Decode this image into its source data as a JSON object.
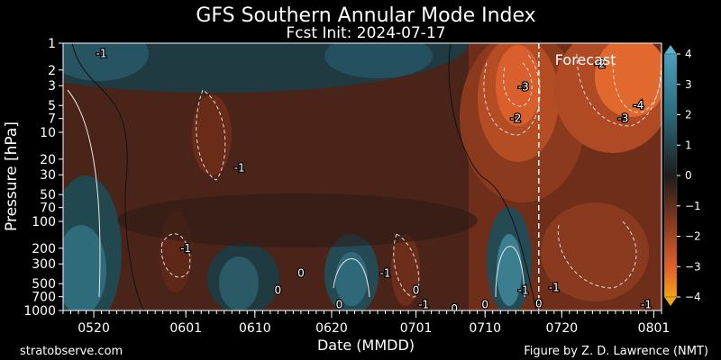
{
  "chart_data": {
    "type": "heatmap",
    "title": "GFS Southern Annular Mode Index",
    "subtitle": "Fcst Init: 2024-07-17",
    "xlabel": "Date (MMDD)",
    "ylabel": "Pressure [hPa]",
    "y_scale": "log",
    "y_inverted": true,
    "ylim": [
      1000,
      1
    ],
    "x_range": [
      "2024-05-16",
      "2024-08-02"
    ],
    "forecast_start": "2024-07-17",
    "forecast_label": "Forecast",
    "x_ticks": [
      "0520",
      "0601",
      "0610",
      "0620",
      "0701",
      "0710",
      "0720",
      "0801"
    ],
    "y_ticks": [
      1,
      2,
      3,
      5,
      7,
      10,
      20,
      30,
      50,
      70,
      100,
      200,
      300,
      500,
      700,
      1000
    ],
    "colorbar": {
      "ticks": [
        4,
        3,
        2,
        1,
        0,
        -1,
        -2,
        -3,
        -4
      ],
      "min": -4,
      "max": 4,
      "colors": {
        "positive_max": "#3f93ad",
        "neutral": "#1a1a1a",
        "negative_max": "#f0a020"
      }
    },
    "contour_labels": [
      {
        "date": "2024-05-21",
        "p": 1.3,
        "label": "-1"
      },
      {
        "date": "2024-06-08",
        "p": 25,
        "label": "-1"
      },
      {
        "date": "2024-06-01",
        "p": 200,
        "label": "-1"
      },
      {
        "date": "2024-06-16",
        "p": 380,
        "label": "0"
      },
      {
        "date": "2024-06-13",
        "p": 590,
        "label": "0"
      },
      {
        "date": "2024-06-27",
        "p": 380,
        "label": "-1"
      },
      {
        "date": "2024-06-21",
        "p": 860,
        "label": "0"
      },
      {
        "date": "2024-07-01",
        "p": 590,
        "label": "0"
      },
      {
        "date": "2024-07-02",
        "p": 860,
        "label": "-1"
      },
      {
        "date": "2024-07-06",
        "p": 950,
        "label": "0"
      },
      {
        "date": "2024-07-10",
        "p": 860,
        "label": "0"
      },
      {
        "date": "2024-07-15",
        "p": 3.1,
        "label": "-3"
      },
      {
        "date": "2024-07-14",
        "p": 7,
        "label": "-2"
      },
      {
        "date": "2024-07-15",
        "p": 590,
        "label": "-1"
      },
      {
        "date": "2024-07-17",
        "p": 840,
        "label": "0"
      },
      {
        "date": "2024-07-19",
        "p": 550,
        "label": "-1"
      },
      {
        "date": "2024-07-25",
        "p": 1.7,
        "label": "-2"
      },
      {
        "date": "2024-07-28",
        "p": 7,
        "label": "-3"
      },
      {
        "date": "2024-07-30",
        "p": 5,
        "label": "-4"
      },
      {
        "date": "2024-07-31",
        "p": 860,
        "label": "-1"
      }
    ]
  },
  "footer": {
    "source": "stratobserve.com",
    "credit": "Figure by Z. D. Lawrence (NMT)"
  }
}
